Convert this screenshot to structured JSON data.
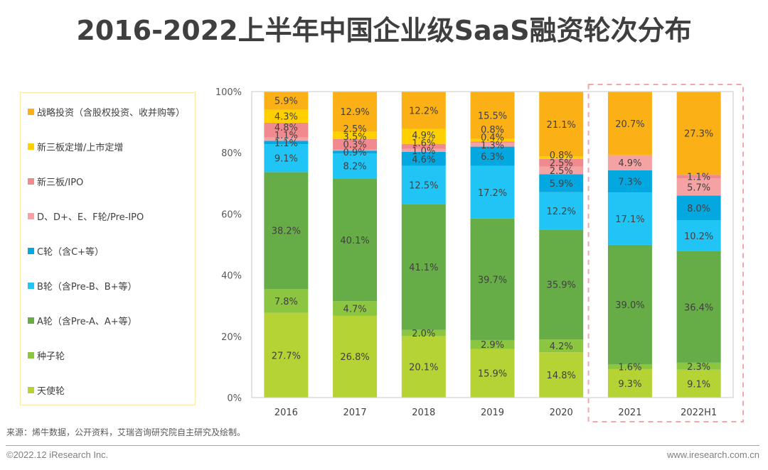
{
  "title": "2016-2022上半年中国企业级SaaS融资轮次分布",
  "source": "来源：烯牛数据，公开资料，艾瑞咨询研究院自主研究及绘制。",
  "footer": {
    "copyright": "©2022.12 iResearch Inc.",
    "website": "www.iresearch.com.cn"
  },
  "highlight": {
    "categories": [
      "2021",
      "2022H1"
    ],
    "color": "#f4a6a8",
    "style": "dashed"
  },
  "chart_data": {
    "type": "bar",
    "stacked": true,
    "percent": true,
    "title": "2016-2022上半年中国企业级SaaS融资轮次分布",
    "xlabel": "",
    "ylabel": "",
    "ylim": [
      0,
      100
    ],
    "yticks": [
      "0%",
      "20%",
      "40%",
      "60%",
      "80%",
      "100%"
    ],
    "ytick_values": [
      0,
      20,
      40,
      60,
      80,
      100
    ],
    "grid": false,
    "legend_position": "left",
    "categories": [
      "2016",
      "2017",
      "2018",
      "2019",
      "2020",
      "2021",
      "2022H1"
    ],
    "series": [
      {
        "name": "天使轮",
        "color": "#b5d334",
        "values": [
          27.7,
          26.8,
          20.1,
          15.9,
          14.8,
          9.3,
          9.1
        ]
      },
      {
        "name": "种子轮",
        "color": "#8cc540",
        "values": [
          7.8,
          4.7,
          2.0,
          2.9,
          4.2,
          1.6,
          2.3
        ]
      },
      {
        "name": "A轮（含Pre-A、A+等）",
        "color": "#66ad47",
        "values": [
          38.2,
          40.1,
          41.1,
          39.7,
          35.9,
          39.0,
          36.4
        ]
      },
      {
        "name": "B轮（含Pre-B、B+等）",
        "color": "#20c5f5",
        "values": [
          9.1,
          8.2,
          12.5,
          17.2,
          12.2,
          17.1,
          10.2
        ]
      },
      {
        "name": "C轮（含C+等）",
        "color": "#04a8e0",
        "values": [
          1.1,
          0.9,
          4.6,
          6.3,
          5.9,
          7.3,
          8.0
        ]
      },
      {
        "name": "D、D+、E、F轮/Pre-IPO",
        "color": "#f4a2a4",
        "values": [
          1.1,
          0.3,
          1.0,
          1.3,
          2.5,
          4.9,
          5.7
        ]
      },
      {
        "name": "新三板/IPO",
        "color": "#f08a8e",
        "values": [
          4.8,
          3.5,
          1.6,
          0.4,
          2.5,
          0,
          1.1
        ]
      },
      {
        "name": "新三板定增/上市定增",
        "color": "#ffd000",
        "values": [
          4.3,
          2.5,
          4.9,
          0.8,
          0.8,
          0,
          0
        ]
      },
      {
        "name": "战略投资（含股权投资、收并购等）",
        "color": "#fbb116",
        "values": [
          5.9,
          12.9,
          12.2,
          15.5,
          21.1,
          20.7,
          27.3
        ]
      }
    ],
    "data_labels": [
      [
        "27.7%",
        "7.8%",
        "38.2%",
        "9.1%",
        "1.1%",
        "1.1%",
        "4.8%",
        "4.3%",
        "5.9%"
      ],
      [
        "26.8%",
        "4.7%",
        "40.1%",
        "8.2%",
        "0.9%",
        "0.3%",
        "3.5%",
        "2.5%",
        "12.9%"
      ],
      [
        "20.1%",
        "2.0%",
        "41.1%",
        "12.5%",
        "4.6%",
        "1.0%",
        "1.6%",
        "4.9%",
        "12.2%"
      ],
      [
        "15.9%",
        "2.9%",
        "39.7%",
        "17.2%",
        "6.3%",
        "1.3%",
        "0.4%",
        "0.8%",
        "15.5%"
      ],
      [
        "14.8%",
        "4.2%",
        "35.9%",
        "12.2%",
        "5.9%",
        "2.5%",
        "2.5%",
        "0.8%",
        "21.1%"
      ],
      [
        "9.3%",
        "1.6%",
        "39.0%",
        "17.1%",
        "7.3%",
        "4.9%",
        "",
        "",
        "20.7%"
      ],
      [
        "9.1%",
        "2.3%",
        "36.4%",
        "10.2%",
        "8.0%",
        "5.7%",
        "1.1%",
        "",
        "27.3%"
      ]
    ],
    "legend_order": [
      "战略投资（含股权投资、收并购等）",
      "新三板定增/上市定增",
      "新三板/IPO",
      "D、D+、E、F轮/Pre-IPO",
      "C轮（含C+等）",
      "B轮（含Pre-B、B+等）",
      "A轮（含Pre-A、A+等）",
      "种子轮",
      "天使轮"
    ]
  }
}
